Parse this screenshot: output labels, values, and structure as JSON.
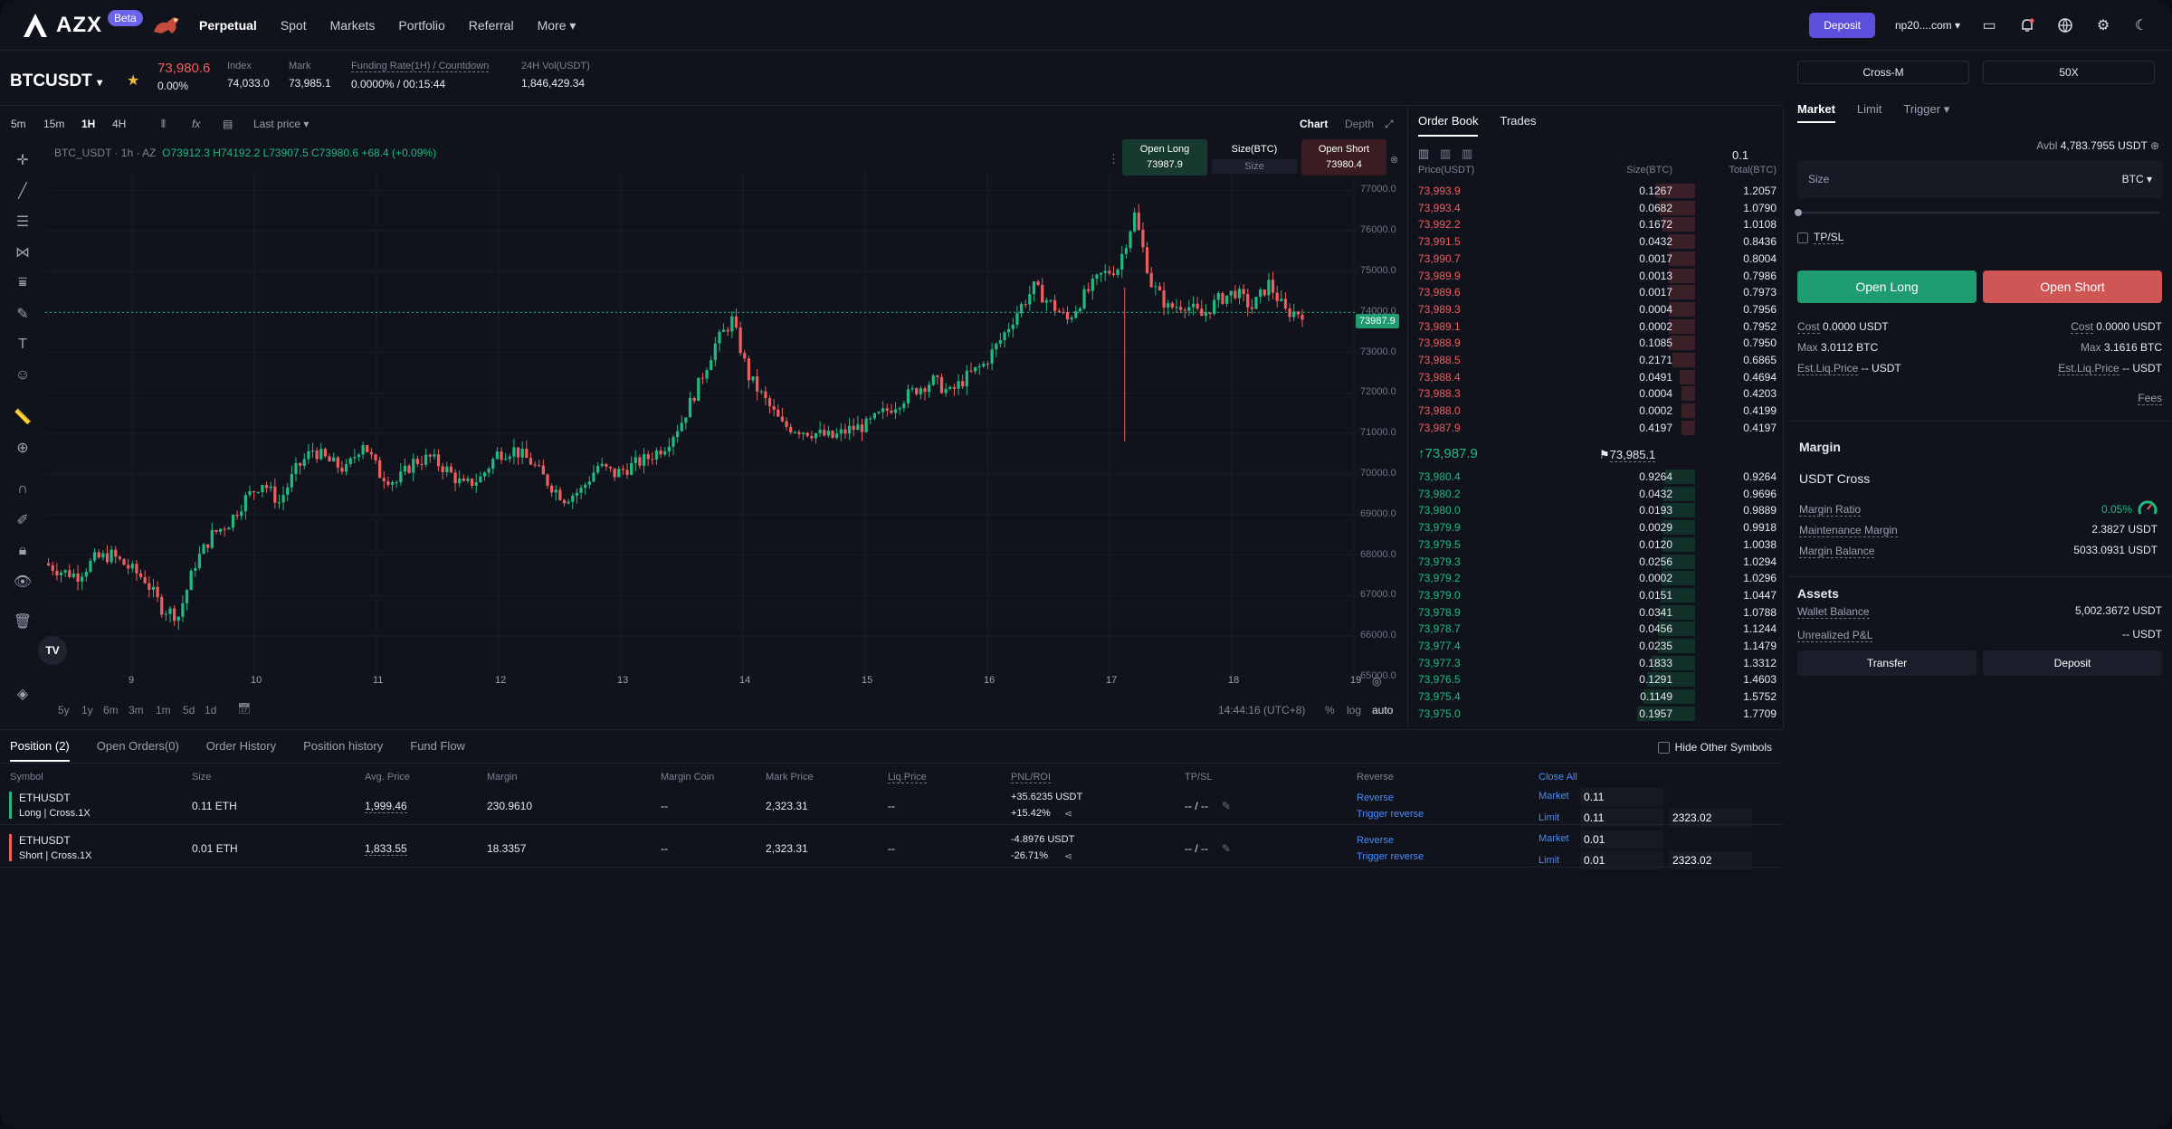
{
  "header": {
    "logo": "AZX",
    "beta": "Beta",
    "nav": [
      "Perpetual",
      "Spot",
      "Markets",
      "Portfolio",
      "Referral",
      "More"
    ],
    "deposit": "Deposit",
    "account": "np20....com"
  },
  "ticker": {
    "symbol": "BTCUSDT",
    "last": "73,980.6",
    "change": "0.00%",
    "index_label": "Index",
    "index": "74,033.0",
    "mark_label": "Mark",
    "mark": "73,985.1",
    "funding_label": "Funding Rate(1H) / Countdown",
    "funding": "0.0000% / 00:15:44",
    "vol_label": "24H Vol(USDT)",
    "vol": "1,846,429.34"
  },
  "chart": {
    "timeframes": [
      "5m",
      "15m",
      "1H",
      "4H"
    ],
    "active_tf": "1H",
    "price_sel": "Last price",
    "tabs": [
      "Chart",
      "Depth"
    ],
    "legend_sym": "BTC_USDT · 1h · AZ",
    "ohlc": "O73912.3 H74192.2 L73907.5 C73980.6 +68.4 (+0.09%)",
    "quick_long_label": "Open Long",
    "quick_long": "73987.9",
    "quick_size_label": "Size(BTC)",
    "quick_size": "Size",
    "quick_short_label": "Open Short",
    "quick_short": "73980.4",
    "price_tag": "73987.9",
    "ranges": [
      "5y",
      "1y",
      "6m",
      "3m",
      "1m",
      "5d",
      "1d"
    ],
    "time": "14:44:16 (UTC+8)",
    "pct": "%",
    "log": "log",
    "auto": "auto",
    "accent_up": "#21b981",
    "accent_down": "#ef5e5e"
  },
  "chart_data": {
    "type": "candlestick",
    "x_ticks": [
      "9",
      "10",
      "11",
      "12",
      "13",
      "14",
      "15",
      "16",
      "17",
      "18",
      "19"
    ],
    "y_ticks": [
      "77000.0",
      "76000.0",
      "75000.0",
      "74000.0",
      "73000.0",
      "72000.0",
      "71000.0",
      "70000.0",
      "69000.0",
      "68000.0",
      "67000.0",
      "66000.0",
      "65000.0"
    ],
    "ylim": [
      65000,
      77500
    ],
    "close_series": [
      67800,
      67600,
      67500,
      67900,
      68000,
      67700,
      67400,
      66700,
      66500,
      67800,
      68500,
      68800,
      69400,
      69800,
      69300,
      70100,
      70600,
      70300,
      70100,
      70800,
      70000,
      69800,
      70300,
      70400,
      70100,
      69700,
      69900,
      70500,
      70600,
      70300,
      69800,
      69400,
      69600,
      70200,
      70000,
      70200,
      70400,
      70700,
      71300,
      72200,
      73200,
      73800,
      72400,
      71800,
      71200,
      71100,
      71000,
      70900,
      71100,
      71200,
      71500,
      71800,
      72100,
      72300,
      72000,
      72400,
      72700,
      73300,
      74000,
      74600,
      74200,
      73800,
      74400,
      74900,
      75100,
      76400,
      74700,
      74100,
      74200,
      73900,
      74300,
      74500,
      74100,
      74700,
      74000,
      73980
    ]
  },
  "orderbook": {
    "tabs": [
      "Order Book",
      "Trades"
    ],
    "precision": "0.1",
    "headers": [
      "Price(USDT)",
      "Size(BTC)",
      "Total(BTC)"
    ],
    "asks": [
      [
        "73,993.9",
        "0.1267",
        "1.2057"
      ],
      [
        "73,993.4",
        "0.0682",
        "1.0790"
      ],
      [
        "73,992.2",
        "0.1672",
        "1.0108"
      ],
      [
        "73,991.5",
        "0.0432",
        "0.8436"
      ],
      [
        "73,990.7",
        "0.0017",
        "0.8004"
      ],
      [
        "73,989.9",
        "0.0013",
        "0.7986"
      ],
      [
        "73,989.6",
        "0.0017",
        "0.7973"
      ],
      [
        "73,989.3",
        "0.0004",
        "0.7956"
      ],
      [
        "73,989.1",
        "0.0002",
        "0.7952"
      ],
      [
        "73,988.9",
        "0.1085",
        "0.7950"
      ],
      [
        "73,988.5",
        "0.2171",
        "0.6865"
      ],
      [
        "73,988.4",
        "0.0491",
        "0.4694"
      ],
      [
        "73,988.3",
        "0.0004",
        "0.4203"
      ],
      [
        "73,988.0",
        "0.0002",
        "0.4199"
      ],
      [
        "73,987.9",
        "0.4197",
        "0.4197"
      ]
    ],
    "mid_price": "73,987.9",
    "mid_mark": "73,985.1",
    "bids": [
      [
        "73,980.4",
        "0.9264",
        "0.9264"
      ],
      [
        "73,980.2",
        "0.0432",
        "0.9696"
      ],
      [
        "73,980.0",
        "0.0193",
        "0.9889"
      ],
      [
        "73,979.9",
        "0.0029",
        "0.9918"
      ],
      [
        "73,979.5",
        "0.0120",
        "1.0038"
      ],
      [
        "73,979.3",
        "0.0256",
        "1.0294"
      ],
      [
        "73,979.2",
        "0.0002",
        "1.0296"
      ],
      [
        "73,979.0",
        "0.0151",
        "1.0447"
      ],
      [
        "73,978.9",
        "0.0341",
        "1.0788"
      ],
      [
        "73,978.7",
        "0.0456",
        "1.1244"
      ],
      [
        "73,977.4",
        "0.0235",
        "1.1479"
      ],
      [
        "73,977.3",
        "0.1833",
        "1.3312"
      ],
      [
        "73,976.5",
        "0.1291",
        "1.4603"
      ],
      [
        "73,975.4",
        "0.1149",
        "1.5752"
      ],
      [
        "73,975.0",
        "0.1957",
        "1.7709"
      ]
    ]
  },
  "order": {
    "margin_mode": "Cross-M",
    "leverage": "50X",
    "tabs": [
      "Market",
      "Limit",
      "Trigger"
    ],
    "avbl_label": "Avbl",
    "avbl": "4,783.7955 USDT",
    "size_ph": "Size",
    "unit": "BTC",
    "tpsl": "TP/SL",
    "open_long": "Open Long",
    "open_short": "Open Short",
    "cost_label": "Cost",
    "cost_long": "0.0000 USDT",
    "cost_short": "0.0000 USDT",
    "max_label": "Max",
    "max_long": "3.0112 BTC",
    "max_short": "3.1616 BTC",
    "liq_label": "Est.Liq.Price",
    "liq_long": "-- USDT",
    "liq_short": "-- USDT",
    "fees": "Fees"
  },
  "margin": {
    "title": "Margin",
    "mode": "USDT Cross",
    "ratio_label": "Margin Ratio",
    "ratio": "0.05%",
    "maint_label": "Maintenance Margin",
    "maint": "2.3827 USDT",
    "bal_label": "Margin Balance",
    "bal": "5033.0931 USDT"
  },
  "assets": {
    "title": "Assets",
    "wallet_label": "Wallet Balance",
    "wallet": "5,002.3672 USDT",
    "upnl_label": "Unrealized P&L",
    "upnl": "-- USDT",
    "transfer": "Transfer",
    "deposit": "Deposit"
  },
  "positions": {
    "tabs": [
      "Position (2)",
      "Open Orders(0)",
      "Order History",
      "Position history",
      "Fund Flow"
    ],
    "hide_label": "Hide Other Symbols",
    "headers": [
      "Symbol",
      "Size",
      "Avg. Price",
      "Margin",
      "Margin Coin",
      "Mark Price",
      "Liq.Price",
      "PNL/ROI",
      "TP/SL",
      "Reverse",
      "Close All"
    ],
    "rows": [
      {
        "symbol": "ETHUSDT",
        "side": "Long | Cross.1X",
        "size": "0.11 ETH",
        "avg": "1,999.46",
        "margin": "230.9610",
        "coin": "--",
        "mark": "2,323.31",
        "liq": "--",
        "pnl": "+35.6235 USDT",
        "roi": "+15.42%",
        "tpsl": "-- / --",
        "rev": "Reverse",
        "trig": "Trigger reverse",
        "m1": "Market",
        "m1v": "0.11",
        "m2": "Limit",
        "m2v": "0.11",
        "m2p": "2323.02"
      },
      {
        "symbol": "ETHUSDT",
        "side": "Short | Cross.1X",
        "size": "0.01 ETH",
        "avg": "1,833.55",
        "margin": "18.3357",
        "coin": "--",
        "mark": "2,323.31",
        "liq": "--",
        "pnl": "-4.8976 USDT",
        "roi": "-26.71%",
        "tpsl": "-- / --",
        "rev": "Reverse",
        "trig": "Trigger reverse",
        "m1": "Market",
        "m1v": "0.01",
        "m2": "Limit",
        "m2v": "0.01",
        "m2p": "2323.02"
      }
    ]
  }
}
